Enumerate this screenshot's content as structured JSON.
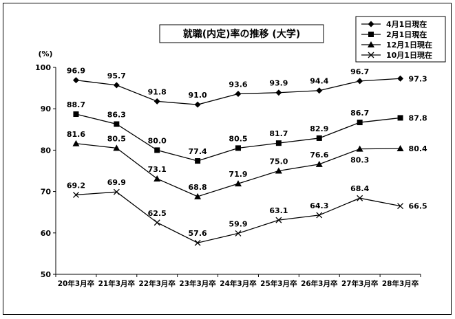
{
  "chart_data": {
    "type": "line",
    "title": "就職(内定)率の推移 (大学)",
    "yunit": "(%)",
    "ylim": [
      50,
      100
    ],
    "yticks": [
      50,
      60,
      70,
      80,
      90,
      100
    ],
    "categories": [
      "20年3月卒",
      "21年3月卒",
      "22年3月卒",
      "23年3月卒",
      "24年3月卒",
      "25年3月卒",
      "26年3月卒",
      "27年3月卒",
      "28年3月卒"
    ],
    "legend_position": "top-right",
    "grid": false,
    "series": [
      {
        "name": "4月1日現在",
        "marker": "diamond",
        "values": [
          96.9,
          95.7,
          91.8,
          91.0,
          93.6,
          93.9,
          94.4,
          96.7,
          97.3
        ],
        "labels": [
          "96.9",
          "95.7",
          "91.8",
          "91.0",
          "93.6",
          "93.9",
          "94.4",
          "96.7",
          "97.3"
        ]
      },
      {
        "name": "2月1日現在",
        "marker": "square",
        "values": [
          88.7,
          86.3,
          80.0,
          77.4,
          80.5,
          81.7,
          82.9,
          86.7,
          87.8
        ],
        "labels": [
          "88.7",
          "86.3",
          "80.0",
          "77.4",
          "80.5",
          "81.7",
          "82.9",
          "86.7",
          "87.8"
        ]
      },
      {
        "name": "12月1日現在",
        "marker": "triangle",
        "values": [
          81.6,
          80.5,
          73.1,
          68.8,
          71.9,
          75.0,
          76.6,
          80.3,
          80.4
        ],
        "labels": [
          "81.6",
          "80.5",
          "73.1",
          "68.8",
          "71.9",
          "75.0",
          "76.6",
          "80.3",
          "80.4"
        ]
      },
      {
        "name": "10月1日現在",
        "marker": "x",
        "values": [
          69.2,
          69.9,
          62.5,
          57.6,
          59.9,
          63.1,
          64.3,
          68.4,
          66.5
        ],
        "labels": [
          "69.2",
          "69.9",
          "62.5",
          "57.6",
          "59.9",
          "63.1",
          "64.3",
          "68.4",
          "66.5"
        ]
      }
    ]
  }
}
